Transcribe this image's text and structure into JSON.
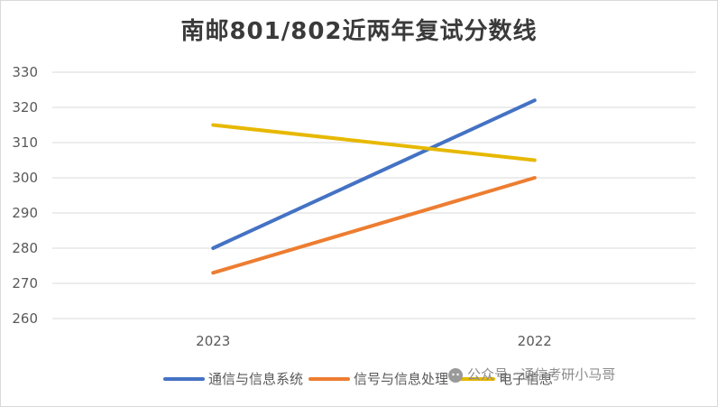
{
  "chart_data": {
    "type": "line",
    "title": "南邮801/802近两年复试分数线",
    "categories": [
      "2023",
      "2022"
    ],
    "ylim": [
      260,
      330
    ],
    "yticks": [
      260,
      270,
      280,
      290,
      300,
      310,
      320,
      330
    ],
    "grid": true,
    "legend_position": "bottom",
    "series": [
      {
        "name": "通信与信息系统",
        "values": [
          280,
          322
        ],
        "color": "#4472C4"
      },
      {
        "name": "信号与信息处理",
        "values": [
          273,
          300
        ],
        "color": "#ED7D31"
      },
      {
        "name": "电子信息",
        "values": [
          315,
          305
        ],
        "color": "#E7B800"
      }
    ]
  },
  "watermark": {
    "text": "公众号 · 通信考研小马哥",
    "icon": "wechat-icon"
  }
}
